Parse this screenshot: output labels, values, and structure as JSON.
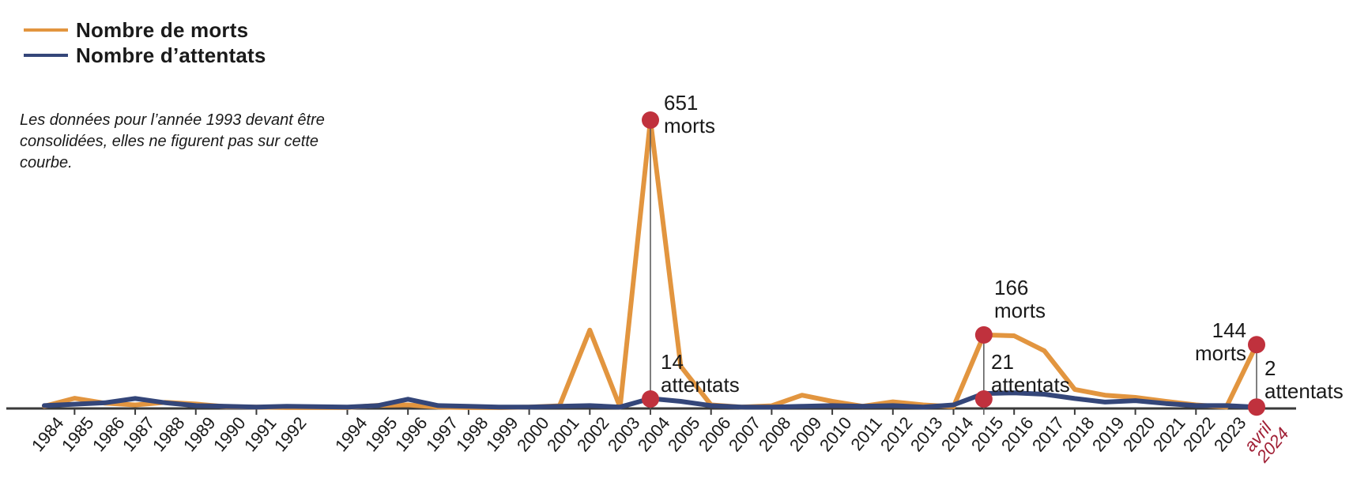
{
  "legend": {
    "items": [
      {
        "label": "Nombre de morts",
        "color": "#E2953F"
      },
      {
        "label": "Nombre d’attentats",
        "color": "#344679"
      }
    ]
  },
  "note": {
    "text": "Les données pour l’année 1993 devant être consolidées, elles ne figurent pas sur cette courbe."
  },
  "chart_data": {
    "type": "line",
    "title": "",
    "categories": [
      "1984",
      "1985",
      "1986",
      "1987",
      "1988",
      "1989",
      "1990",
      "1991",
      "1992",
      "1994",
      "1995",
      "1996",
      "1997",
      "1998",
      "1999",
      "2000",
      "2001",
      "2002",
      "2003",
      "2004",
      "2005",
      "2006",
      "2007",
      "2008",
      "2009",
      "2010",
      "2011",
      "2012",
      "2013",
      "2014",
      "2015",
      "2016",
      "2017",
      "2018",
      "2019",
      "2020",
      "2021",
      "2022",
      "2023",
      "avril 2024"
    ],
    "skipped_year": "1993",
    "series": [
      {
        "name": "Nombre de morts",
        "color": "#E2953F",
        "values": [
          5,
          23,
          12,
          8,
          14,
          10,
          4,
          3,
          2,
          2,
          7,
          8,
          3,
          2,
          2,
          3,
          6,
          177,
          3,
          651,
          95,
          8,
          3,
          6,
          30,
          16,
          5,
          15,
          8,
          4,
          166,
          164,
          130,
          43,
          30,
          25,
          16,
          8,
          3,
          144
        ]
      },
      {
        "name": "Nombre d’attentats",
        "color": "#344679",
        "values": [
          4,
          6,
          8,
          14,
          8,
          4,
          3,
          2,
          3,
          2,
          4,
          13,
          4,
          3,
          2,
          2,
          3,
          4,
          2,
          14,
          10,
          4,
          2,
          2,
          3,
          4,
          3,
          4,
          2,
          5,
          21,
          22,
          20,
          14,
          9,
          11,
          7,
          4,
          4,
          2
        ]
      }
    ],
    "annotations": [
      {
        "year": "2004",
        "morts": 651,
        "morts_unit": "morts",
        "attentats": 14,
        "attentats_unit": "attentats"
      },
      {
        "year": "2015",
        "morts": 166,
        "morts_unit": "morts",
        "attentats": 21,
        "attentats_unit": "attentats"
      },
      {
        "year": "avril 2024",
        "morts": 144,
        "morts_unit": "morts",
        "attentats": 2,
        "attentats_unit": "attentats"
      }
    ],
    "marker_color": "#C0313D",
    "axis_color": "#3A3A3A",
    "annotation_line_color": "#555555",
    "april_label_color": "#A01F35",
    "legend_position": "top-left",
    "grid": "off"
  }
}
